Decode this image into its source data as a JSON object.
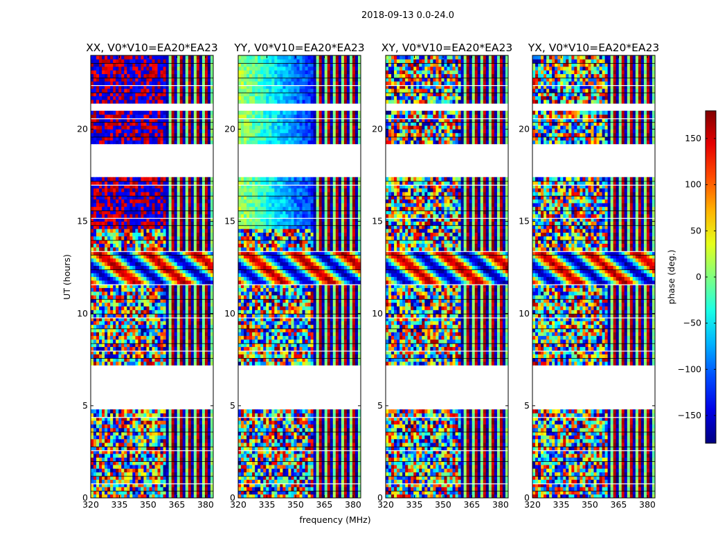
{
  "chart_data": {
    "type": "heatmap",
    "suptitle": "2018-09-13 0.0-24.0",
    "panels": [
      {
        "title": "XX, V0*V10=EA20*EA23",
        "pol": "XX"
      },
      {
        "title": "YY, V0*V10=EA20*EA23",
        "pol": "YY"
      },
      {
        "title": "XY, V0*V10=EA20*EA23",
        "pol": "XY"
      },
      {
        "title": "YX, V0*V10=EA20*EA23",
        "pol": "YX"
      }
    ],
    "xlabel": "frequency (MHz)",
    "ylabel": "UT (hours)",
    "xlim": [
      320,
      384
    ],
    "ylim": [
      0,
      24
    ],
    "xticks": [
      "320",
      "335",
      "350",
      "365",
      "380"
    ],
    "xtick_values": [
      320,
      335,
      350,
      365,
      380
    ],
    "yticks": [
      "0",
      "5",
      "10",
      "15",
      "20"
    ],
    "ytick_values": [
      0,
      5,
      10,
      15,
      20
    ],
    "colorbar": {
      "label": "phase (deg.)",
      "range": [
        -180,
        180
      ],
      "ticks": [
        "150",
        "100",
        "50",
        "0",
        "−50",
        "−100",
        "−150"
      ],
      "tick_values": [
        150,
        100,
        50,
        0,
        -50,
        -100,
        -150
      ],
      "colormap": "jet"
    },
    "data_gaps_hours": [
      [
        19.2,
        17.5
      ],
      [
        7.2,
        4.9
      ],
      [
        21.0,
        21.3
      ]
    ],
    "coherent_region_mhz": [
      320,
      360
    ]
  }
}
